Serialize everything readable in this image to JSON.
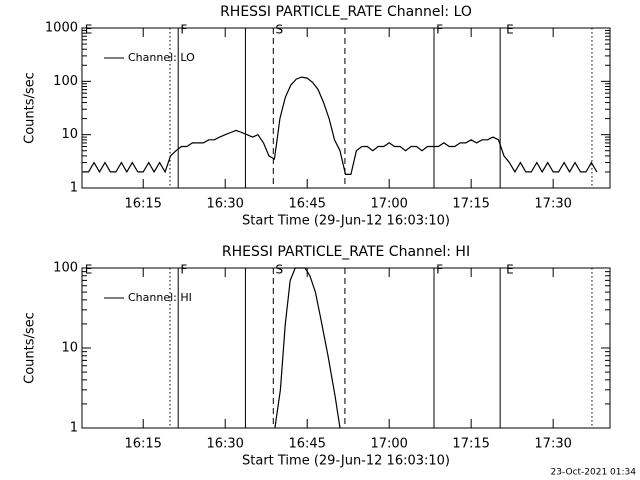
{
  "chart_data": [
    {
      "type": "line",
      "title": "RHESSI PARTICLE_RATE Channel: LO",
      "xlabel": "Start Time (29-Jun-12 16:03:10)",
      "ylabel": "Counts/sec",
      "log_y": true,
      "ylim": [
        1,
        1000
      ],
      "yticks": [
        1,
        10,
        100,
        1000
      ],
      "xlim": [
        963.8,
        1060.4
      ],
      "xticks": [
        {
          "value": 975,
          "label": "16:15"
        },
        {
          "value": 990,
          "label": "16:30"
        },
        {
          "value": 1005,
          "label": "16:45"
        },
        {
          "value": 1020,
          "label": "17:00"
        },
        {
          "value": 1035,
          "label": "17:15"
        },
        {
          "value": 1050,
          "label": "17:30"
        }
      ],
      "legend": "top-left",
      "event_lines": [
        {
          "x": 979.9,
          "style": "dotted"
        },
        {
          "x": 981.4,
          "style": "solid"
        },
        {
          "x": 993.7,
          "style": "solid"
        },
        {
          "x": 998.8,
          "style": "dashed"
        },
        {
          "x": 1011.9,
          "style": "dashed"
        },
        {
          "x": 1028.2,
          "style": "solid"
        },
        {
          "x": 1040.3,
          "style": "solid"
        },
        {
          "x": 1057.1,
          "style": "dotted"
        }
      ],
      "event_labels": [
        {
          "label": "E",
          "x": 964.3
        },
        {
          "label": "F",
          "x": 981.8
        },
        {
          "label": "S",
          "x": 999.2
        },
        {
          "label": "F",
          "x": 1028.6
        },
        {
          "label": "E",
          "x": 1041.4
        }
      ],
      "series": [
        {
          "name": "Channel: LO",
          "color": "#000000",
          "x": [
            964,
            965,
            966,
            967,
            968,
            969,
            970,
            971,
            972,
            973,
            974,
            975,
            976,
            977,
            978,
            979,
            980,
            981,
            982,
            983,
            984,
            985,
            986,
            987,
            988,
            989,
            990,
            991,
            992,
            993,
            994,
            995,
            996,
            997,
            998,
            999,
            999.5,
            1000,
            1001,
            1002,
            1003,
            1004,
            1005,
            1006,
            1007,
            1008,
            1009,
            1010,
            1011,
            1012,
            1013,
            1014,
            1015,
            1016,
            1017,
            1018,
            1019,
            1020,
            1021,
            1022,
            1023,
            1024,
            1025,
            1026,
            1027,
            1028,
            1029,
            1030,
            1031,
            1032,
            1033,
            1034,
            1035,
            1036,
            1037,
            1038,
            1039,
            1040,
            1041,
            1042,
            1043,
            1044,
            1045,
            1046,
            1047,
            1048,
            1049,
            1050,
            1051,
            1052,
            1053,
            1054,
            1055,
            1056,
            1057,
            1058
          ],
          "values": [
            2,
            2,
            3,
            2,
            3,
            2,
            2,
            3,
            2,
            3,
            2,
            2,
            3,
            2,
            3,
            2,
            4,
            5,
            6,
            6,
            7,
            7,
            7,
            8,
            8,
            9,
            10,
            11,
            12,
            11,
            10,
            9,
            10,
            7,
            4,
            3.5,
            8,
            20,
            50,
            85,
            110,
            120,
            115,
            95,
            70,
            40,
            20,
            8,
            5,
            1.8,
            1.8,
            5,
            6,
            6,
            5,
            6,
            6,
            7,
            6,
            6,
            5,
            6,
            6,
            5,
            6,
            6,
            6,
            7,
            6,
            6,
            7,
            7,
            8,
            7,
            8,
            8,
            9,
            8,
            4,
            3,
            2,
            3,
            2,
            2,
            3,
            2,
            3,
            2,
            2,
            3,
            2,
            3,
            2,
            2,
            3,
            2
          ]
        }
      ]
    },
    {
      "type": "line",
      "title": "RHESSI PARTICLE_RATE Channel: HI",
      "xlabel": "Start Time (29-Jun-12 16:03:10)",
      "ylabel": "Counts/sec",
      "log_y": true,
      "ylim": [
        1,
        100
      ],
      "yticks": [
        1,
        10,
        100
      ],
      "xlim": [
        963.8,
        1060.4
      ],
      "xticks": [
        {
          "value": 975,
          "label": "16:15"
        },
        {
          "value": 990,
          "label": "16:30"
        },
        {
          "value": 1005,
          "label": "16:45"
        },
        {
          "value": 1020,
          "label": "17:00"
        },
        {
          "value": 1035,
          "label": "17:15"
        },
        {
          "value": 1050,
          "label": "17:30"
        }
      ],
      "legend": "top-left",
      "event_lines": [
        {
          "x": 979.9,
          "style": "dotted"
        },
        {
          "x": 981.4,
          "style": "solid"
        },
        {
          "x": 993.7,
          "style": "solid"
        },
        {
          "x": 998.8,
          "style": "dashed"
        },
        {
          "x": 1011.9,
          "style": "dashed"
        },
        {
          "x": 1028.2,
          "style": "solid"
        },
        {
          "x": 1040.3,
          "style": "solid"
        },
        {
          "x": 1057.1,
          "style": "dotted"
        }
      ],
      "event_labels": [
        {
          "label": "E",
          "x": 964.3
        },
        {
          "label": "F",
          "x": 981.8
        },
        {
          "label": "S",
          "x": 999.2
        },
        {
          "label": "F",
          "x": 1028.6
        },
        {
          "label": "E",
          "x": 1041.4
        }
      ],
      "series": [
        {
          "name": "Channel: HI",
          "color": "#000000",
          "x": [
            999.1,
            1000.1,
            1001.0,
            1001.9,
            1002.8,
            1004.6,
            1005.5,
            1006.5,
            1007.4,
            1008.8,
            1010.1,
            1011.0
          ],
          "values": [
            1,
            3,
            20,
            70,
            100,
            100,
            80,
            50,
            25,
            8,
            2.5,
            1
          ]
        }
      ]
    }
  ],
  "footer": "23-Oct-2021 01:34"
}
